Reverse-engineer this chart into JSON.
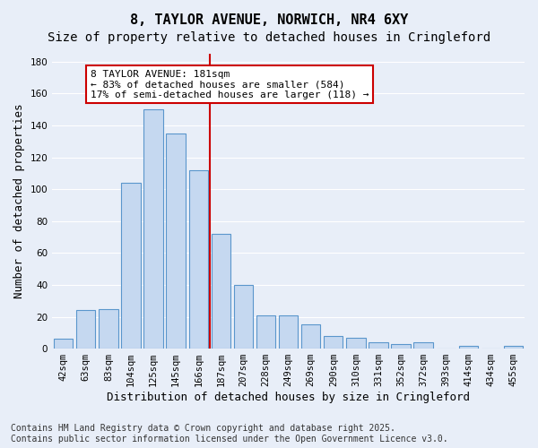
{
  "title": "8, TAYLOR AVENUE, NORWICH, NR4 6XY",
  "subtitle": "Size of property relative to detached houses in Cringleford",
  "xlabel": "Distribution of detached houses by size in Cringleford",
  "ylabel": "Number of detached properties",
  "footer_line1": "Contains HM Land Registry data © Crown copyright and database right 2025.",
  "footer_line2": "Contains public sector information licensed under the Open Government Licence v3.0.",
  "annotation_title": "8 TAYLOR AVENUE: 181sqm",
  "annotation_line2": "← 83% of detached houses are smaller (584)",
  "annotation_line3": "17% of semi-detached houses are larger (118) →",
  "bar_labels": [
    "42sqm",
    "63sqm",
    "83sqm",
    "104sqm",
    "125sqm",
    "145sqm",
    "166sqm",
    "187sqm",
    "207sqm",
    "228sqm",
    "249sqm",
    "269sqm",
    "290sqm",
    "310sqm",
    "331sqm",
    "352sqm",
    "372sqm",
    "393sqm",
    "414sqm",
    "434sqm",
    "455sqm"
  ],
  "bar_values": [
    6,
    24,
    25,
    104,
    150,
    135,
    112,
    72,
    40,
    21,
    21,
    15,
    8,
    7,
    4,
    3,
    4,
    0,
    2,
    0,
    2
  ],
  "bar_color": "#c5d8f0",
  "bar_edge_color": "#5a96cc",
  "vline_pos": 6.5,
  "ylim": [
    0,
    185
  ],
  "yticks": [
    0,
    20,
    40,
    60,
    80,
    100,
    120,
    140,
    160,
    180
  ],
  "background_color": "#e8eef8",
  "grid_color": "#ffffff",
  "annotation_box_color": "#ffffff",
  "annotation_box_edge": "#cc0000",
  "vline_color": "#cc0000",
  "title_fontsize": 11,
  "subtitle_fontsize": 10,
  "axis_label_fontsize": 9,
  "tick_fontsize": 7.5,
  "annotation_fontsize": 8,
  "footer_fontsize": 7
}
